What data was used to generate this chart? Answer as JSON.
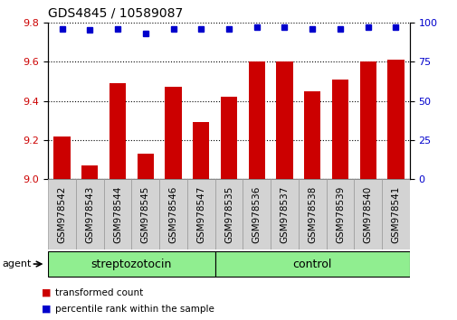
{
  "title": "GDS4845 / 10589087",
  "samples": [
    "GSM978542",
    "GSM978543",
    "GSM978544",
    "GSM978545",
    "GSM978546",
    "GSM978547",
    "GSM978535",
    "GSM978536",
    "GSM978537",
    "GSM978538",
    "GSM978539",
    "GSM978540",
    "GSM978541"
  ],
  "red_values": [
    9.22,
    9.07,
    9.49,
    9.13,
    9.47,
    9.29,
    9.42,
    9.6,
    9.6,
    9.45,
    9.51,
    9.6,
    9.61
  ],
  "blue_values": [
    96,
    95,
    96,
    93,
    96,
    96,
    96,
    97,
    97,
    96,
    96,
    97,
    97
  ],
  "ylim_left": [
    9.0,
    9.8
  ],
  "ylim_right": [
    0,
    100
  ],
  "yticks_left": [
    9.0,
    9.2,
    9.4,
    9.6,
    9.8
  ],
  "yticks_right": [
    0,
    25,
    50,
    75,
    100
  ],
  "groups": [
    {
      "label": "streptozotocin",
      "indices": [
        0,
        1,
        2,
        3,
        4,
        5
      ],
      "color": "#90ee90"
    },
    {
      "label": "control",
      "indices": [
        6,
        7,
        8,
        9,
        10,
        11,
        12
      ],
      "color": "#90ee90"
    }
  ],
  "group_row_label": "agent",
  "red_color": "#cc0000",
  "blue_color": "#0000cc",
  "bar_width": 0.6,
  "legend_items": [
    {
      "label": "transformed count",
      "color": "#cc0000"
    },
    {
      "label": "percentile rank within the sample",
      "color": "#0000cc"
    }
  ],
  "tick_bg_color": "#d3d3d3",
  "title_fontsize": 10,
  "axis_fontsize": 8,
  "tick_fontsize": 7.5
}
